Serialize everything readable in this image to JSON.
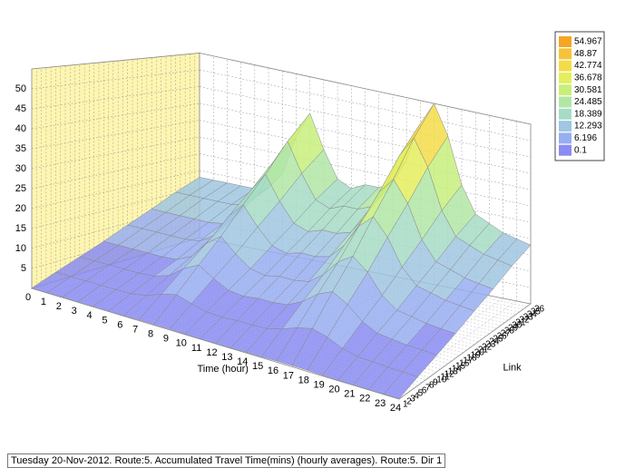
{
  "chart_data": {
    "type": "surface",
    "status": "Tuesday 20-Nov-2012. Route:5. Accumulated Travel Time(mins) (hourly averages).  Route:5. Dir 1",
    "xlabel": "Time (hour)",
    "ylabel": "Link",
    "xlim": [
      0,
      24
    ],
    "ylim": [
      1,
      36
    ],
    "zlim": [
      0,
      55
    ],
    "x": [
      0,
      1,
      2,
      3,
      4,
      5,
      6,
      7,
      8,
      9,
      10,
      11,
      12,
      13,
      14,
      15,
      16,
      17,
      18,
      19,
      20,
      21,
      22,
      23,
      24
    ],
    "yticks": [
      1,
      2,
      3,
      4,
      5,
      6,
      7,
      8,
      9,
      10,
      11,
      12,
      13,
      14,
      15,
      16,
      17,
      18,
      19,
      20,
      21,
      22,
      23,
      24,
      25,
      26,
      27,
      28,
      29,
      30,
      31,
      32,
      33,
      34,
      35,
      36
    ],
    "zticks": [
      5,
      10,
      15,
      20,
      25,
      30,
      35,
      40,
      45,
      50
    ],
    "links": [
      1,
      6,
      11,
      16,
      21,
      26,
      31,
      36
    ],
    "z": [
      [
        0.1,
        0.1,
        0.1,
        0.1,
        0.1,
        0.1,
        0.1,
        0.2,
        0.2,
        0.2,
        0.1,
        0.1,
        0.1,
        0.1,
        0.2,
        0.2,
        0.3,
        0.3,
        0.3,
        0.2,
        0.1,
        0.1,
        0.1,
        0.1,
        0.1
      ],
      [
        2.3,
        2.3,
        2.3,
        2.3,
        2.3,
        2.4,
        3,
        4.5,
        5.5,
        4.3,
        3.3,
        3,
        3.3,
        3.3,
        3.5,
        4.5,
        6,
        6.9,
        5.8,
        4,
        3,
        2.8,
        2.5,
        2.4,
        2.3
      ],
      [
        4.5,
        4.5,
        4.5,
        4.5,
        4.5,
        4.8,
        6,
        9,
        11,
        8.5,
        6.5,
        6,
        6.5,
        6.5,
        7,
        9,
        12,
        13.8,
        11.5,
        8,
        6,
        5.5,
        5,
        4.8,
        4.5
      ],
      [
        6.8,
        6.8,
        6.8,
        6.8,
        6.8,
        7.1,
        9,
        13.5,
        16.5,
        12.8,
        9.8,
        9,
        9.8,
        9.8,
        10.5,
        13.5,
        18,
        20.6,
        17.3,
        12,
        9,
        8.3,
        7.5,
        7.1,
        6.8
      ],
      [
        9.5,
        9.5,
        9.5,
        9.5,
        9.5,
        10,
        12.6,
        18.9,
        23.1,
        17.9,
        13.7,
        12.6,
        13.7,
        13.7,
        14.7,
        18.9,
        25.2,
        28.9,
        24.2,
        16.8,
        12.6,
        11.6,
        10.5,
        10,
        9.5
      ],
      [
        12.2,
        12.2,
        12.2,
        12.2,
        12.2,
        12.8,
        16.2,
        24.3,
        29.7,
        23,
        17.6,
        16.2,
        17.6,
        17.6,
        18.9,
        24.3,
        32.4,
        37.1,
        31.1,
        21.6,
        16.2,
        14.9,
        13.5,
        12.8,
        12.2
      ],
      [
        15.3,
        15.3,
        15.3,
        15.3,
        15.3,
        16.2,
        20.4,
        30.6,
        37.4,
        28.9,
        22.1,
        20.4,
        22.1,
        22.1,
        23.8,
        30.6,
        40.8,
        46.8,
        39.1,
        27.2,
        20.4,
        18.7,
        17,
        16.2,
        15.3
      ],
      [
        18,
        18,
        18,
        18,
        18,
        19,
        24,
        36,
        44,
        34,
        26,
        24,
        26,
        26,
        28,
        36,
        48,
        54.967,
        46,
        32,
        24,
        22,
        20,
        19,
        18
      ]
    ],
    "legend": {
      "levels": [
        54.967,
        48.87,
        42.774,
        36.678,
        30.581,
        24.485,
        18.389,
        12.293,
        6.196,
        0.1
      ],
      "colors": [
        "#f5a623",
        "#f7c23a",
        "#f3dc48",
        "#e4ee5e",
        "#c8ef7c",
        "#b2e6a4",
        "#a6dcc6",
        "#a0c6e2",
        "#98aef2",
        "#8a8cf2"
      ]
    }
  }
}
